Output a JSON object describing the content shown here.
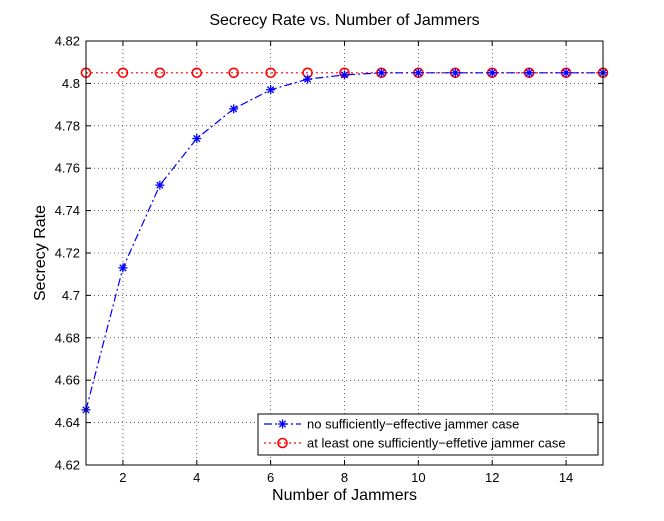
{
  "chart_data": {
    "type": "line",
    "title": "Secrecy Rate vs. Number of Jammers",
    "xlabel": "Number of Jammers",
    "ylabel": "Secrecy Rate",
    "xlim": [
      1,
      15
    ],
    "ylim": [
      4.62,
      4.82
    ],
    "grid": true,
    "x_ticks": [
      2,
      4,
      6,
      8,
      10,
      12,
      14
    ],
    "x_tick_labels": [
      "2",
      "4",
      "6",
      "8",
      "10",
      "12",
      "14"
    ],
    "y_ticks": [
      4.62,
      4.64,
      4.66,
      4.68,
      4.7,
      4.72,
      4.74,
      4.76,
      4.78,
      4.8,
      4.82
    ],
    "y_tick_labels": [
      "4.62",
      "4.64",
      "4.66",
      "4.68",
      "4.7",
      "4.72",
      "4.74",
      "4.76",
      "4.78",
      "4.8",
      "4.82"
    ],
    "legend_position": "bottom-right",
    "x": [
      1,
      2,
      3,
      4,
      5,
      6,
      7,
      8,
      9,
      10,
      11,
      12,
      13,
      14,
      15
    ],
    "series": [
      {
        "name": "no sufficiently−effective jammer case",
        "color": "#0000ff",
        "line_style": "dash-dot",
        "marker": "asterisk",
        "values": [
          4.646,
          4.713,
          4.752,
          4.774,
          4.788,
          4.797,
          4.802,
          4.804,
          4.805,
          4.805,
          4.805,
          4.805,
          4.805,
          4.805,
          4.805
        ]
      },
      {
        "name": "at least one sufficiently−effetive jammer case",
        "color": "#ff0000",
        "line_style": "dotted",
        "marker": "circle",
        "values": [
          4.805,
          4.805,
          4.805,
          4.805,
          4.805,
          4.805,
          4.805,
          4.805,
          4.805,
          4.805,
          4.805,
          4.805,
          4.805,
          4.805,
          4.805
        ]
      }
    ]
  }
}
